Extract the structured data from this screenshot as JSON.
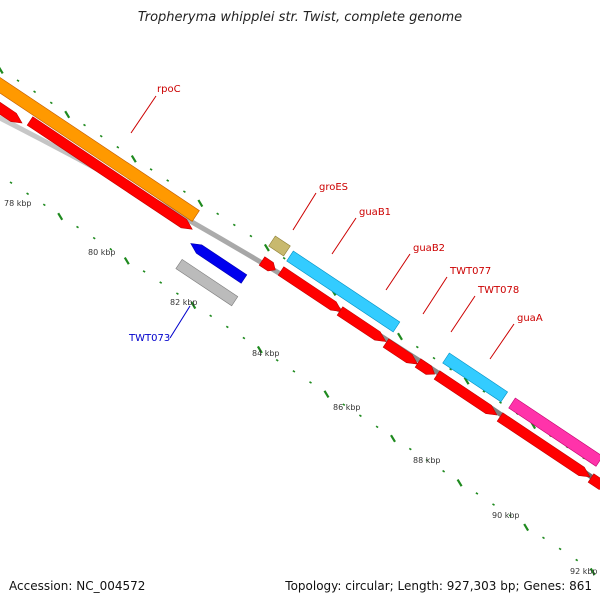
{
  "title": "Tropheryma whipplei str. Twist, complete genome",
  "footer": {
    "accession": "Accession: NC_004572",
    "summary": "Topology: circular; Length: 927,303 bp; Genes: 861"
  },
  "colors": {
    "backbone_dark": "#777777",
    "backbone_light": "#c8c8c8",
    "tick_dots": "#1f8a1f",
    "cds_red": "#ff0000",
    "label_red": "#cc0000",
    "label_blue": "#0000cc",
    "rpoC_orange": "#ff9900",
    "groES_khaki": "#c8b96e",
    "guaB_cyan": "#33ccff",
    "guaA_magenta": "#ff33aa",
    "reverse_blue": "#0000ee",
    "reverse_grey": "#bbbbbb"
  },
  "scale_labels": [
    "78 kbp",
    "80 kbp",
    "82 kbp",
    "84 kbp",
    "86 kbp",
    "88 kbp",
    "90 kbp",
    "92 kbp"
  ],
  "gene_labels": [
    {
      "name": "rpoC",
      "color_key": "label_red"
    },
    {
      "name": "groES",
      "color_key": "label_red"
    },
    {
      "name": "guaB1",
      "color_key": "label_red"
    },
    {
      "name": "guaB2",
      "color_key": "label_red"
    },
    {
      "name": "TWT077",
      "color_key": "label_red"
    },
    {
      "name": "TWT078",
      "color_key": "label_red"
    },
    {
      "name": "guaA",
      "color_key": "label_red"
    },
    {
      "name": "TWT073",
      "color_key": "label_blue"
    }
  ]
}
